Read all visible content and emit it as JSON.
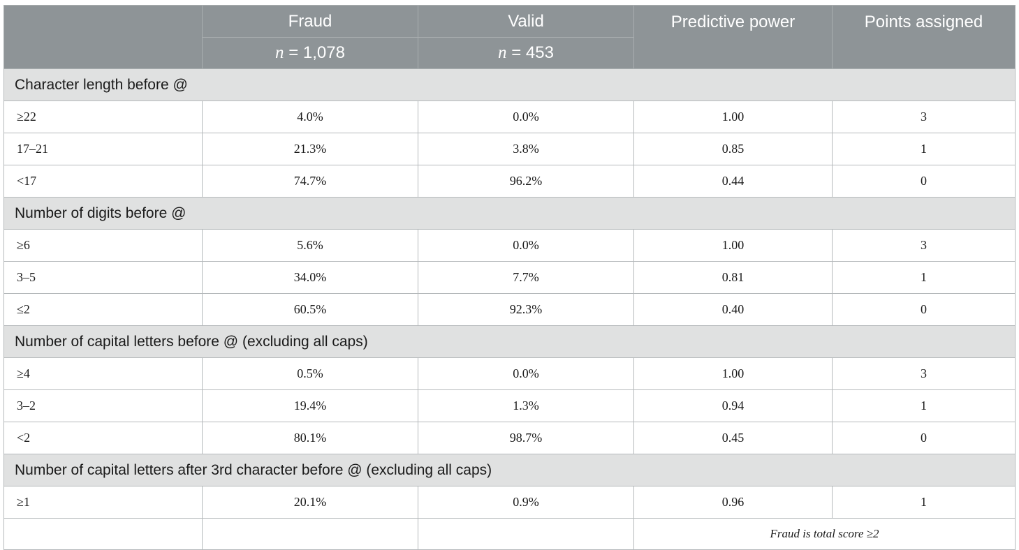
{
  "header": {
    "fraud": "Fraud",
    "valid": "Valid",
    "predictive_power": "Predictive power",
    "points_assigned": "Points assigned",
    "fraud_n_var": "n",
    "fraud_n_value": " = 1,078",
    "valid_n_var": "n",
    "valid_n_value": " = 453"
  },
  "sections": [
    {
      "title": "Character length before @",
      "rows": [
        [
          "≥22",
          "4.0%",
          "0.0%",
          "1.00",
          "3"
        ],
        [
          "17–21",
          "21.3%",
          "3.8%",
          "0.85",
          "1"
        ],
        [
          "<17",
          "74.7%",
          "96.2%",
          "0.44",
          "0"
        ]
      ]
    },
    {
      "title": "Number of digits before @",
      "rows": [
        [
          "≥6",
          "5.6%",
          "0.0%",
          "1.00",
          "3"
        ],
        [
          "3–5",
          "34.0%",
          "7.7%",
          "0.81",
          "1"
        ],
        [
          "≤2",
          "60.5%",
          "92.3%",
          "0.40",
          "0"
        ]
      ]
    },
    {
      "title": "Number of capital letters before @ (excluding all caps)",
      "rows": [
        [
          "≥4",
          "0.5%",
          "0.0%",
          "1.00",
          "3"
        ],
        [
          "3–2",
          "19.4%",
          "1.3%",
          "0.94",
          "1"
        ],
        [
          "<2",
          "80.1%",
          "98.7%",
          "0.45",
          "0"
        ]
      ]
    },
    {
      "title": "Number of capital letters after 3rd character before @ (excluding all caps)",
      "rows": [
        [
          "≥1",
          "20.1%",
          "0.9%",
          "0.96",
          "1"
        ]
      ]
    }
  ],
  "footer": {
    "note": "Fraud is total score ≥2"
  }
}
